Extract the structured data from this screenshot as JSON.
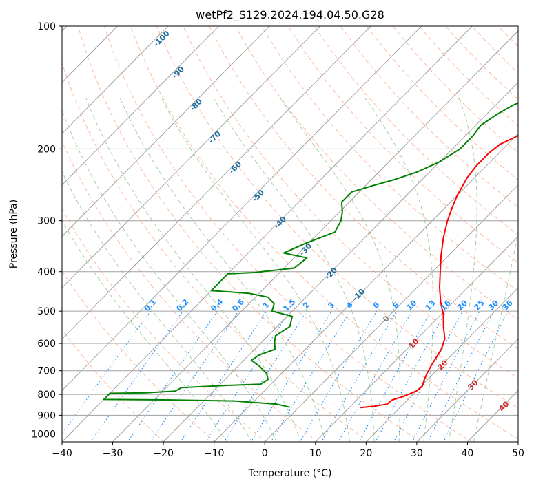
{
  "chart_data": {
    "type": "line",
    "chart_kind": "skew-T log-P diagram",
    "title": "wetPf2_S129.2024.194.04.50.G28",
    "xlabel": "Temperature (°C)",
    "ylabel": "Pressure (hPa)",
    "xlim": [
      -40,
      50
    ],
    "ylim": [
      1050,
      100
    ],
    "y_scale": "log",
    "grid": true,
    "x_ticks": [
      -40,
      -30,
      -20,
      -10,
      0,
      10,
      20,
      30,
      40,
      50
    ],
    "y_ticks": [
      100,
      200,
      300,
      400,
      500,
      600,
      700,
      800,
      900,
      1000
    ],
    "series": [
      {
        "name": "",
        "color": "#ff0000",
        "points": [
          [
            12.2,
            862
          ],
          [
            14.7,
            855
          ],
          [
            16.8,
            845
          ],
          [
            17.0,
            825
          ],
          [
            18.5,
            810
          ],
          [
            20.0,
            785
          ],
          [
            20.3,
            765
          ],
          [
            19.5,
            740
          ],
          [
            18.8,
            715
          ],
          [
            18.0,
            680
          ],
          [
            16.8,
            620
          ],
          [
            15.5,
            585
          ],
          [
            12.8,
            545
          ],
          [
            10.5,
            510
          ],
          [
            7.5,
            475
          ],
          [
            4.5,
            438
          ],
          [
            1.5,
            400
          ],
          [
            -1.5,
            365
          ],
          [
            -4.5,
            330
          ],
          [
            -7.0,
            300
          ],
          [
            -8.5,
            280
          ],
          [
            -10.0,
            260
          ],
          [
            -11.5,
            235
          ],
          [
            -12.0,
            220
          ],
          [
            -12.0,
            205
          ],
          [
            -11.5,
            195
          ],
          [
            -9.5,
            185
          ],
          [
            -7.0,
            178
          ],
          [
            -3.5,
            170
          ],
          [
            -1.0,
            163
          ],
          [
            1.5,
            155
          ],
          [
            3.5,
            145
          ],
          [
            6.0,
            135
          ],
          [
            9.0,
            125
          ],
          [
            11.5,
            115
          ],
          [
            14.5,
            105
          ],
          [
            17.0,
            100
          ]
        ]
      },
      {
        "name": "",
        "color": "#008000",
        "points": [
          [
            -1.8,
            860
          ],
          [
            -5.0,
            845
          ],
          [
            -14.0,
            830
          ],
          [
            -28.0,
            825
          ],
          [
            -40.0,
            823
          ],
          [
            -40.0,
            795
          ],
          [
            -33.0,
            793
          ],
          [
            -27.5,
            785
          ],
          [
            -27.0,
            770
          ],
          [
            -18.0,
            760
          ],
          [
            -12.0,
            755
          ],
          [
            -11.5,
            735
          ],
          [
            -13.0,
            710
          ],
          [
            -16.0,
            680
          ],
          [
            -18.5,
            660
          ],
          [
            -18.0,
            640
          ],
          [
            -16.0,
            620
          ],
          [
            -17.5,
            595
          ],
          [
            -18.5,
            575
          ],
          [
            -17.5,
            545
          ],
          [
            -19.0,
            515
          ],
          [
            -24.0,
            500
          ],
          [
            -25.0,
            480
          ],
          [
            -27.5,
            462
          ],
          [
            -32.0,
            452
          ],
          [
            -40.0,
            445
          ],
          [
            -40.0,
            405
          ],
          [
            -35.0,
            402
          ],
          [
            -28.0,
            392
          ],
          [
            -27.5,
            370
          ],
          [
            -33.0,
            360
          ],
          [
            -30.5,
            340
          ],
          [
            -27.0,
            320
          ],
          [
            -28.0,
            300
          ],
          [
            -29.5,
            285
          ],
          [
            -31.5,
            270
          ],
          [
            -31.5,
            255
          ],
          [
            -28.5,
            246
          ],
          [
            -25.5,
            238
          ],
          [
            -22.5,
            228
          ],
          [
            -20.0,
            215
          ],
          [
            -18.5,
            200
          ],
          [
            -18.5,
            186
          ],
          [
            -19.0,
            175
          ],
          [
            -18.0,
            165
          ],
          [
            -16.5,
            156
          ],
          [
            -14.5,
            150
          ],
          [
            -12.5,
            143
          ],
          [
            -11.0,
            132
          ],
          [
            -9.5,
            120
          ],
          [
            -7.0,
            111
          ],
          [
            -5.0,
            104
          ],
          [
            -3.8,
            100
          ]
        ]
      }
    ],
    "dry_adiabat_labels": [
      "-100",
      "-90",
      "-80",
      "-70",
      "-60",
      "-50",
      "-40",
      "-30",
      "-20",
      "-10"
    ],
    "zero_label": "0",
    "temperature_labels": [
      "10",
      "20",
      "30",
      "40"
    ],
    "mixing_ratio_labels": [
      "0.1",
      "0.2",
      "0.4",
      "0.6",
      "1",
      "1.5",
      "2",
      "3",
      "4",
      "6",
      "8",
      "10",
      "13",
      "16",
      "20",
      "25",
      "30",
      "36"
    ],
    "mixing_ratio_values": [
      0.1,
      0.2,
      0.4,
      0.6,
      1,
      1.5,
      2,
      3,
      4,
      6,
      8,
      10,
      13,
      16,
      20,
      25,
      30,
      36
    ],
    "colors": {
      "temperature_line": "#ff0000",
      "dewpoint_line": "#008000",
      "isotherm": "#a0a0a0",
      "dry_adiabat": "#ffa07a",
      "moist_adiabat": "#90c090",
      "mixing_ratio": "#1e90ff",
      "adiabat_label": "#1f6fa0",
      "temperature_label": "#d62728"
    }
  }
}
